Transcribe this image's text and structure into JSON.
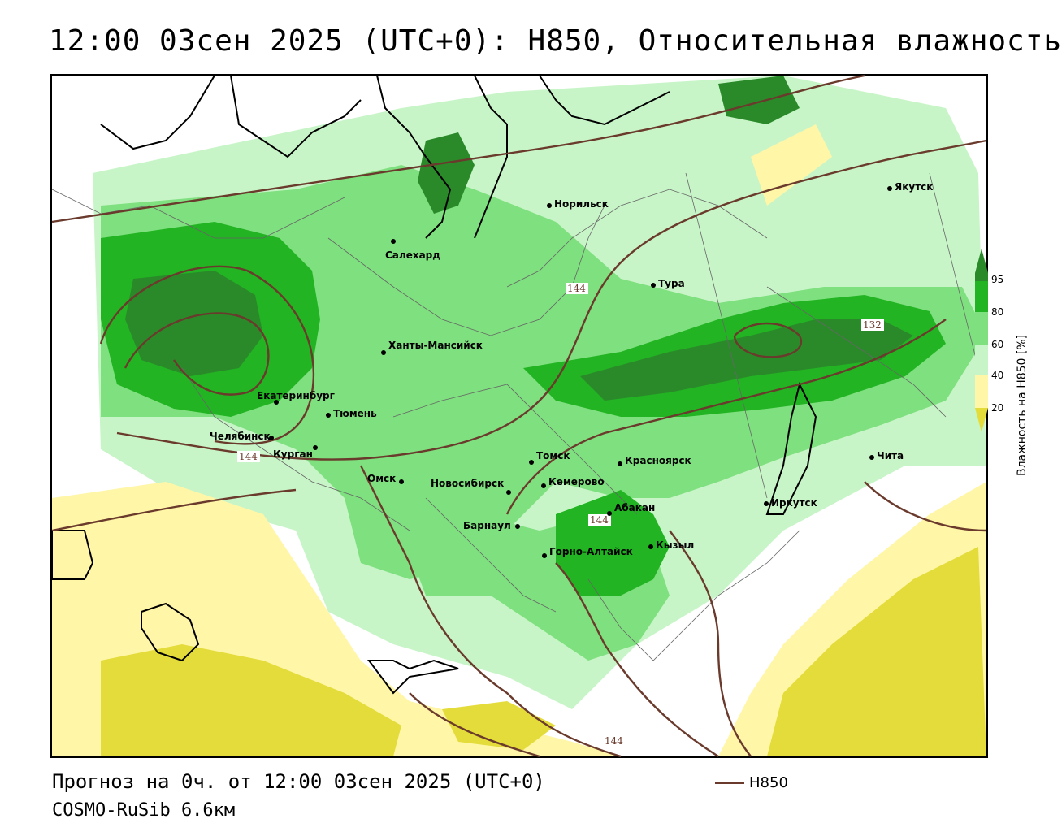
{
  "title": "12:00 03сен 2025 (UTC+0): H850, Относительная влажность",
  "footer": {
    "forecast": "Прогноз на 0ч. от 12:00 03сен 2025 (UTC+0)",
    "model": "COSMO-RuSib 6.6км"
  },
  "line_legend": {
    "label": "H850",
    "color": "#6a3a2c"
  },
  "colorbar": {
    "title": "Влажность на H850 [%]",
    "ticks": [
      "95",
      "80",
      "60",
      "40",
      "20"
    ],
    "colors": {
      "above_95": "#2a8a2a",
      "80_95": "#22b422",
      "60_80": "#7fe07f",
      "40_60": "#c8f5c8",
      "20_40": "#fff6a8",
      "below_20": "#e4dc3a",
      "lowest": "#c8c038"
    }
  },
  "cities": [
    {
      "name": "Норильск"
    },
    {
      "name": "Якутск"
    },
    {
      "name": "Салехард"
    },
    {
      "name": "Тура"
    },
    {
      "name": "Ханты-Мансийск"
    },
    {
      "name": "Екатеринбург"
    },
    {
      "name": "Тюмень"
    },
    {
      "name": "Челябинск"
    },
    {
      "name": "Курган"
    },
    {
      "name": "Томск"
    },
    {
      "name": "Красноярск"
    },
    {
      "name": "Чита"
    },
    {
      "name": "Омск"
    },
    {
      "name": "Новосибирск"
    },
    {
      "name": "Кемерово"
    },
    {
      "name": "Абакан"
    },
    {
      "name": "Иркутск"
    },
    {
      "name": "Барнаул"
    },
    {
      "name": "Кызыл"
    },
    {
      "name": "Горно-Алтайск"
    }
  ],
  "contour_labels": [
    "144",
    "144",
    "144",
    "132",
    "144"
  ]
}
